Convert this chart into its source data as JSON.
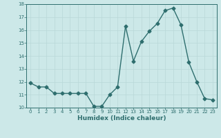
{
  "x": [
    0,
    1,
    2,
    3,
    4,
    5,
    6,
    7,
    8,
    9,
    10,
    11,
    12,
    13,
    14,
    15,
    16,
    17,
    18,
    19,
    20,
    21,
    22,
    23
  ],
  "y": [
    11.9,
    11.6,
    11.6,
    11.1,
    11.1,
    11.1,
    11.1,
    11.1,
    10.1,
    10.1,
    11.0,
    11.6,
    16.3,
    13.6,
    15.1,
    15.9,
    16.5,
    17.5,
    17.7,
    16.4,
    13.5,
    12.0,
    10.7,
    10.6
  ],
  "line_color": "#2e6e6e",
  "bg_color": "#cce8e8",
  "grid_color": "#b8d8d8",
  "xlabel": "Humidex (Indice chaleur)",
  "ylim": [
    10,
    18
  ],
  "xlim": [
    -0.5,
    23.5
  ],
  "yticks": [
    10,
    11,
    12,
    13,
    14,
    15,
    16,
    17,
    18
  ],
  "xticks": [
    0,
    1,
    2,
    3,
    4,
    5,
    6,
    7,
    8,
    9,
    10,
    11,
    12,
    13,
    14,
    15,
    16,
    17,
    18,
    19,
    20,
    21,
    22,
    23
  ],
  "xtick_labels": [
    "0",
    "1",
    "2",
    "3",
    "4",
    "5",
    "6",
    "7",
    "8",
    "9",
    "10",
    "11",
    "12",
    "13",
    "14",
    "15",
    "16",
    "17",
    "18",
    "19",
    "20",
    "21",
    "22",
    "23"
  ],
  "marker": "D",
  "markersize": 2.5,
  "linewidth": 1.0,
  "tick_fontsize": 5.0,
  "xlabel_fontsize": 6.5
}
